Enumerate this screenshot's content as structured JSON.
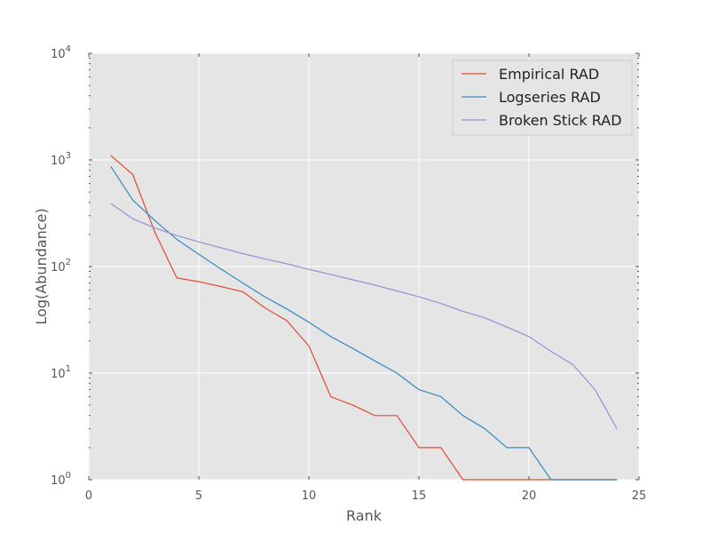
{
  "chart_data": {
    "type": "line",
    "title": "",
    "xlabel": "Rank",
    "ylabel": "Log(Abundance)",
    "xlim": [
      0,
      25
    ],
    "ylim": [
      1,
      10000
    ],
    "yscale": "log",
    "grid": true,
    "legend_position": "top-right",
    "x_ticks": [
      "0",
      "5",
      "10",
      "15",
      "20",
      "25"
    ],
    "y_ticks": [
      {
        "base": "10",
        "exp": "0"
      },
      {
        "base": "10",
        "exp": "1"
      },
      {
        "base": "10",
        "exp": "2"
      },
      {
        "base": "10",
        "exp": "3"
      },
      {
        "base": "10",
        "exp": "4"
      }
    ],
    "series": [
      {
        "name": "Empirical RAD",
        "color": "#E24A33",
        "x": [
          1,
          2,
          3,
          4,
          5,
          6,
          7,
          8,
          9,
          10,
          11,
          12,
          13,
          14,
          15,
          16,
          17,
          18,
          19,
          20,
          21,
          22,
          23,
          24
        ],
        "values": [
          1100,
          730,
          210,
          78,
          72,
          65,
          58,
          41,
          31,
          18,
          6,
          5,
          4,
          4,
          2,
          2,
          1,
          1,
          1,
          1,
          1,
          1,
          1,
          1
        ]
      },
      {
        "name": "Logseries RAD",
        "color": "#348ABD",
        "x": [
          1,
          2,
          3,
          4,
          5,
          6,
          7,
          8,
          9,
          10,
          11,
          12,
          13,
          14,
          15,
          16,
          17,
          18,
          19,
          20,
          21,
          22,
          23,
          24
        ],
        "values": [
          870,
          420,
          270,
          180,
          130,
          95,
          70,
          52,
          40,
          30,
          22,
          17,
          13,
          10,
          7,
          6,
          4,
          3,
          2,
          2,
          1,
          1,
          1,
          1
        ]
      },
      {
        "name": "Broken Stick RAD",
        "color": "#988ED5",
        "x": [
          1,
          2,
          3,
          4,
          5,
          6,
          7,
          8,
          9,
          10,
          11,
          12,
          13,
          14,
          15,
          16,
          17,
          18,
          19,
          20,
          21,
          22,
          23,
          24
        ],
        "values": [
          390,
          280,
          230,
          195,
          170,
          150,
          132,
          118,
          106,
          94,
          84,
          75,
          67,
          59,
          52,
          45,
          38,
          33,
          27,
          22,
          16,
          12,
          7,
          3
        ]
      }
    ]
  },
  "colors": {
    "plot_background": "#E5E5E5",
    "grid": "#FFFFFF",
    "text": "#555555"
  }
}
